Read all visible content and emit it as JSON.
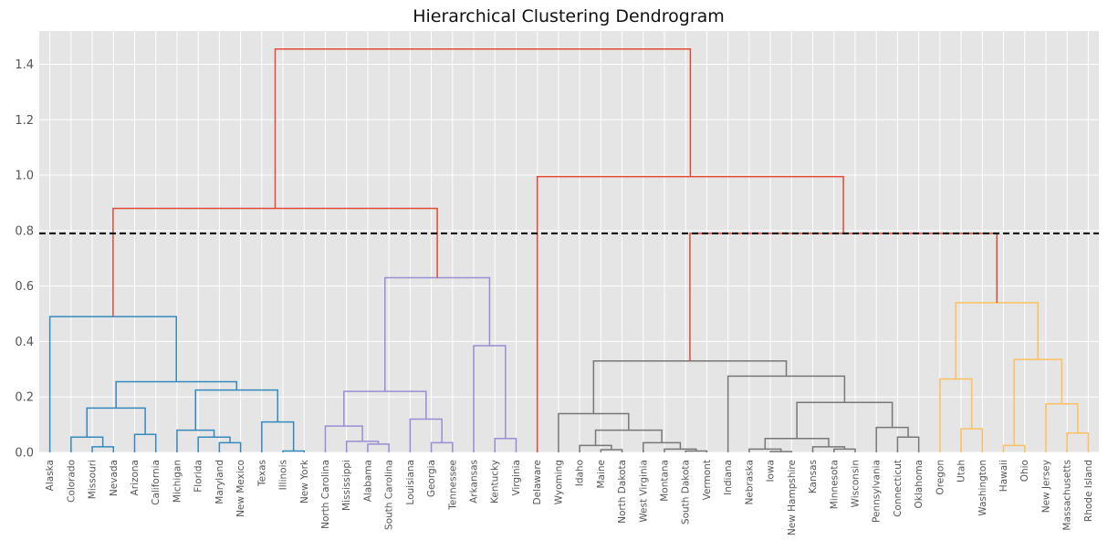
{
  "chart_data": {
    "type": "dendrogram",
    "title": "Hierarchical Clustering Dendrogram",
    "xlabel": "",
    "ylabel": "",
    "ylim": [
      0,
      1.52
    ],
    "yticks": [
      "0.0",
      "0.2",
      "0.4",
      "0.6",
      "0.8",
      "1.0",
      "1.2",
      "1.4"
    ],
    "grid": true,
    "threshold": 0.79,
    "colors": {
      "background": "#e5e5e5",
      "grid": "#ffffff",
      "above_threshold": "#e24a33",
      "cluster_1": "#348abd",
      "cluster_2": "#988ed5",
      "cluster_3": "#777777",
      "cluster_4": "#fbc15e",
      "threshold_line": "#000000"
    },
    "leaves": [
      "Alaska",
      "Colorado",
      "Missouri",
      "Nevada",
      "Arizona",
      "California",
      "Michigan",
      "Florida",
      "Maryland",
      "New Mexico",
      "Texas",
      "Illinois",
      "New York",
      "North Carolina",
      "Mississippi",
      "Alabama",
      "South Carolina",
      "Louisiana",
      "Georgia",
      "Tennessee",
      "Arkansas",
      "Kentucky",
      "Virginia",
      "Delaware",
      "Wyoming",
      "Idaho",
      "Maine",
      "North Dakota",
      "West Virginia",
      "Montana",
      "South Dakota",
      "Vermont",
      "Indiana",
      "Nebraska",
      "Iowa",
      "New Hampshire",
      "Kansas",
      "Minnesota",
      "Wisconsin",
      "Pennsylvania",
      "Connecticut",
      "Oklahoma",
      "Oregon",
      "Utah",
      "Washington",
      "Hawaii",
      "Ohio",
      "New Jersey",
      "Massachusetts",
      "Rhode Island"
    ],
    "merges": [
      {
        "a": 2,
        "b": 3,
        "h": 0.02,
        "c": "cluster_1"
      },
      {
        "a": 1,
        "b": 2.5,
        "h": 0.055,
        "c": "cluster_1"
      },
      {
        "a": 4,
        "b": 5,
        "h": 0.065,
        "c": "cluster_1"
      },
      {
        "a": 1.75,
        "b": 4.5,
        "h": 0.16,
        "c": "cluster_1"
      },
      {
        "a": 8,
        "b": 9,
        "h": 0.035,
        "c": "cluster_1"
      },
      {
        "a": 7,
        "b": 8.5,
        "h": 0.055,
        "c": "cluster_1"
      },
      {
        "a": 6,
        "b": 7.75,
        "h": 0.08,
        "c": "cluster_1"
      },
      {
        "a": 11,
        "b": 12,
        "h": 0.005,
        "c": "cluster_1"
      },
      {
        "a": 10,
        "b": 11.5,
        "h": 0.11,
        "c": "cluster_1"
      },
      {
        "a": 6.875,
        "b": 10.75,
        "h": 0.225,
        "c": "cluster_1"
      },
      {
        "a": 3.125,
        "b": 8.8125,
        "h": 0.255,
        "c": "cluster_1"
      },
      {
        "a": 0,
        "b": 5.96875,
        "h": 0.49,
        "c": "cluster_1"
      },
      {
        "a": 15,
        "b": 16,
        "h": 0.03,
        "c": "cluster_2"
      },
      {
        "a": 14,
        "b": 15.5,
        "h": 0.04,
        "c": "cluster_2"
      },
      {
        "a": 13,
        "b": 14.75,
        "h": 0.095,
        "c": "cluster_2"
      },
      {
        "a": 18,
        "b": 19,
        "h": 0.035,
        "c": "cluster_2"
      },
      {
        "a": 17,
        "b": 18.5,
        "h": 0.12,
        "c": "cluster_2"
      },
      {
        "a": 13.875,
        "b": 17.75,
        "h": 0.22,
        "c": "cluster_2"
      },
      {
        "a": 21,
        "b": 22,
        "h": 0.05,
        "c": "cluster_2"
      },
      {
        "a": 20,
        "b": 21.5,
        "h": 0.385,
        "c": "cluster_2"
      },
      {
        "a": 15.8125,
        "b": 20.75,
        "h": 0.63,
        "c": "cluster_2"
      },
      {
        "a": 2.984375,
        "b": 18.28125,
        "h": 0.88,
        "c": "above_threshold"
      },
      {
        "a": 26,
        "b": 27,
        "h": 0.01,
        "c": "cluster_3"
      },
      {
        "a": 25,
        "b": 26.5,
        "h": 0.025,
        "c": "cluster_3"
      },
      {
        "a": 30,
        "b": 31,
        "h": 0.005,
        "c": "cluster_3"
      },
      {
        "a": 29,
        "b": 30.5,
        "h": 0.012,
        "c": "cluster_3"
      },
      {
        "a": 28,
        "b": 29.75,
        "h": 0.035,
        "c": "cluster_3"
      },
      {
        "a": 25.75,
        "b": 28.875,
        "h": 0.08,
        "c": "cluster_3"
      },
      {
        "a": 24,
        "b": 27.3125,
        "h": 0.14,
        "c": "cluster_3"
      },
      {
        "a": 34,
        "b": 35,
        "h": 0.003,
        "c": "cluster_3"
      },
      {
        "a": 33,
        "b": 34.5,
        "h": 0.012,
        "c": "cluster_3"
      },
      {
        "a": 37,
        "b": 38,
        "h": 0.012,
        "c": "cluster_3"
      },
      {
        "a": 36,
        "b": 37.5,
        "h": 0.02,
        "c": "cluster_3"
      },
      {
        "a": 33.75,
        "b": 36.75,
        "h": 0.05,
        "c": "cluster_3"
      },
      {
        "a": 40,
        "b": 41,
        "h": 0.055,
        "c": "cluster_3"
      },
      {
        "a": 39,
        "b": 40.5,
        "h": 0.09,
        "c": "cluster_3"
      },
      {
        "a": 35.25,
        "b": 39.75,
        "h": 0.18,
        "c": "cluster_3"
      },
      {
        "a": 32,
        "b": 37.5,
        "h": 0.275,
        "c": "cluster_3"
      },
      {
        "a": 25.65625,
        "b": 34.75,
        "h": 0.33,
        "c": "cluster_3"
      },
      {
        "a": 43,
        "b": 44,
        "h": 0.085,
        "c": "cluster_4"
      },
      {
        "a": 42,
        "b": 43.5,
        "h": 0.265,
        "c": "cluster_4"
      },
      {
        "a": 45,
        "b": 46,
        "h": 0.025,
        "c": "cluster_4"
      },
      {
        "a": 48,
        "b": 49,
        "h": 0.07,
        "c": "cluster_4"
      },
      {
        "a": 47,
        "b": 48.5,
        "h": 0.175,
        "c": "cluster_4"
      },
      {
        "a": 45.5,
        "b": 47.75,
        "h": 0.335,
        "c": "cluster_4"
      },
      {
        "a": 42.75,
        "b": 46.625,
        "h": 0.54,
        "c": "cluster_4"
      },
      {
        "a": 30.203125,
        "b": 44.6875,
        "h": 0.79,
        "c": "above_threshold"
      },
      {
        "a": 23,
        "b": 37.4453125,
        "h": 0.995,
        "c": "above_threshold"
      },
      {
        "a": 10.6328125,
        "b": 30.22265625,
        "h": 1.455,
        "c": "above_threshold"
      }
    ]
  }
}
